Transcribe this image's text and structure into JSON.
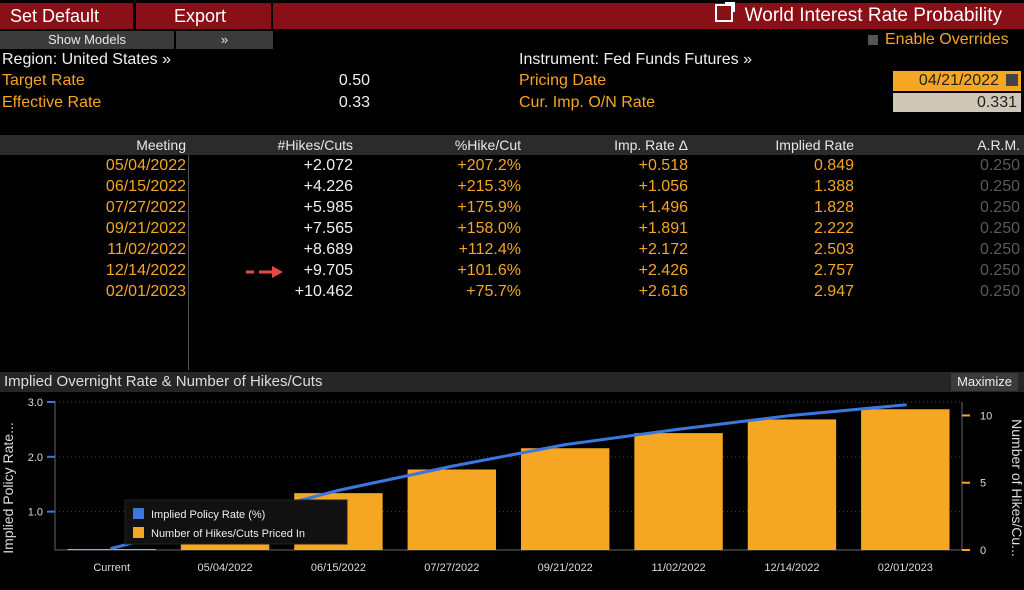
{
  "toolbar": {
    "set_default": "Set Default",
    "export": "Export",
    "title": "World Interest Rate Probability"
  },
  "subbar": {
    "show_models": "Show Models",
    "expand": "»",
    "enable_overrides": "Enable Overrides"
  },
  "info": {
    "region": "Region: United States »",
    "target_rate_label": "Target Rate",
    "target_rate_value": "0.50",
    "effective_rate_label": "Effective Rate",
    "effective_rate_value": "0.33",
    "instrument": "Instrument: Fed Funds Futures »",
    "pricing_date_label": "Pricing Date",
    "pricing_date_value": "04/21/2022",
    "cur_imp_label": "Cur. Imp. O/N Rate",
    "cur_imp_value": "0.331"
  },
  "table": {
    "headers": [
      "Meeting",
      "#Hikes/Cuts",
      "%Hike/Cut",
      "Imp. Rate Δ",
      "Implied Rate",
      "A.R.M."
    ],
    "rows": [
      [
        "05/04/2022",
        "+2.072",
        "+207.2%",
        "+0.518",
        "0.849",
        "0.250"
      ],
      [
        "06/15/2022",
        "+4.226",
        "+215.3%",
        "+1.056",
        "1.388",
        "0.250"
      ],
      [
        "07/27/2022",
        "+5.985",
        "+175.9%",
        "+1.496",
        "1.828",
        "0.250"
      ],
      [
        "09/21/2022",
        "+7.565",
        "+158.0%",
        "+1.891",
        "2.222",
        "0.250"
      ],
      [
        "11/02/2022",
        "+8.689",
        "+112.4%",
        "+2.172",
        "2.503",
        "0.250"
      ],
      [
        "12/14/2022",
        "+9.705",
        "+101.6%",
        "+2.426",
        "2.757",
        "0.250"
      ],
      [
        "02/01/2023",
        "+10.462",
        "+75.7%",
        "+2.616",
        "2.947",
        "0.250"
      ]
    ]
  },
  "chart_header": {
    "title": "Implied Overnight Rate & Number of Hikes/Cuts",
    "maximize": "Maximize"
  },
  "chart_data": {
    "type": "bar",
    "categories": [
      "Current",
      "05/04/2022",
      "06/15/2022",
      "07/27/2022",
      "09/21/2022",
      "11/02/2022",
      "12/14/2022",
      "02/01/2023"
    ],
    "series": [
      {
        "name": "Implied Policy Rate (%)",
        "type": "line",
        "axis": "left",
        "values": [
          0.331,
          0.849,
          1.388,
          1.828,
          2.222,
          2.503,
          2.757,
          2.947
        ]
      },
      {
        "name": "Number of Hikes/Cuts Priced In",
        "type": "bar",
        "axis": "right",
        "values": [
          0,
          2.072,
          4.226,
          5.985,
          7.565,
          8.689,
          9.705,
          10.462
        ]
      }
    ],
    "ylabel": "Implied Policy Rate...",
    "y2label": "Number of Hikes/Cu...",
    "ylim": [
      0.3,
      3.0
    ],
    "y2lim": [
      0,
      11
    ],
    "yticks": [
      "1.0",
      "2.0",
      "3.0"
    ],
    "y2ticks": [
      "0",
      "5",
      "10"
    ],
    "colors": {
      "line": "#3a78e0",
      "bar": "#f5a623"
    },
    "legend_position": "bottom-left"
  }
}
